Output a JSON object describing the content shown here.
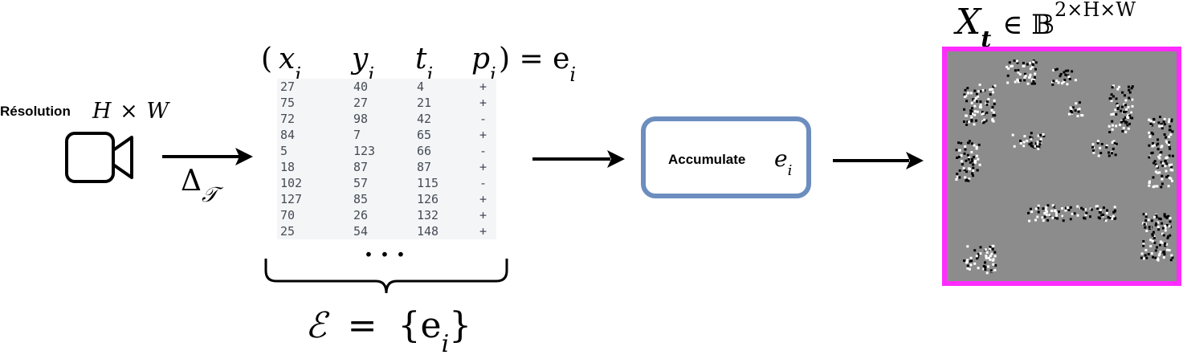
{
  "resolution": {
    "label": "Résolution",
    "math": "H × W"
  },
  "transform_label": "Δ",
  "transform_sub": "𝒯",
  "tuple_header": {
    "open": "(",
    "x": "x",
    "y": "y",
    "t": "t",
    "p": "p",
    "sub": "i",
    "close": ") = e"
  },
  "event_rows": [
    [
      "27",
      "40",
      "4",
      "+"
    ],
    [
      "75",
      "27",
      "21",
      "+"
    ],
    [
      "72",
      "98",
      "42",
      "-"
    ],
    [
      "84",
      "7",
      "65",
      "+"
    ],
    [
      "5",
      "123",
      "66",
      "-"
    ],
    [
      "18",
      "87",
      "87",
      "+"
    ],
    [
      "102",
      "57",
      "115",
      "-"
    ],
    [
      "127",
      "85",
      "126",
      "+"
    ],
    [
      "70",
      "26",
      "132",
      "+"
    ],
    [
      "25",
      "54",
      "148",
      "+"
    ]
  ],
  "ellipsis": "···",
  "event_set": {
    "lhs": "ℰ",
    "eq": "=",
    "rhs_open": "{e",
    "sub": "i",
    "rhs_close": "}"
  },
  "accumulate": {
    "label": "Accumulate",
    "math": "e",
    "sub": "i"
  },
  "output": {
    "symbol": "X",
    "sub": "t",
    "in": "∈ 𝔹",
    "sup": "2×H×W"
  },
  "colors": {
    "box_border": "#6c8ebf",
    "frame_border": "#ff2bff",
    "frame_bg": "#8c8c8c",
    "table_bg": "#f4f5f7"
  },
  "icons": {
    "camera": "video-camera-icon"
  }
}
